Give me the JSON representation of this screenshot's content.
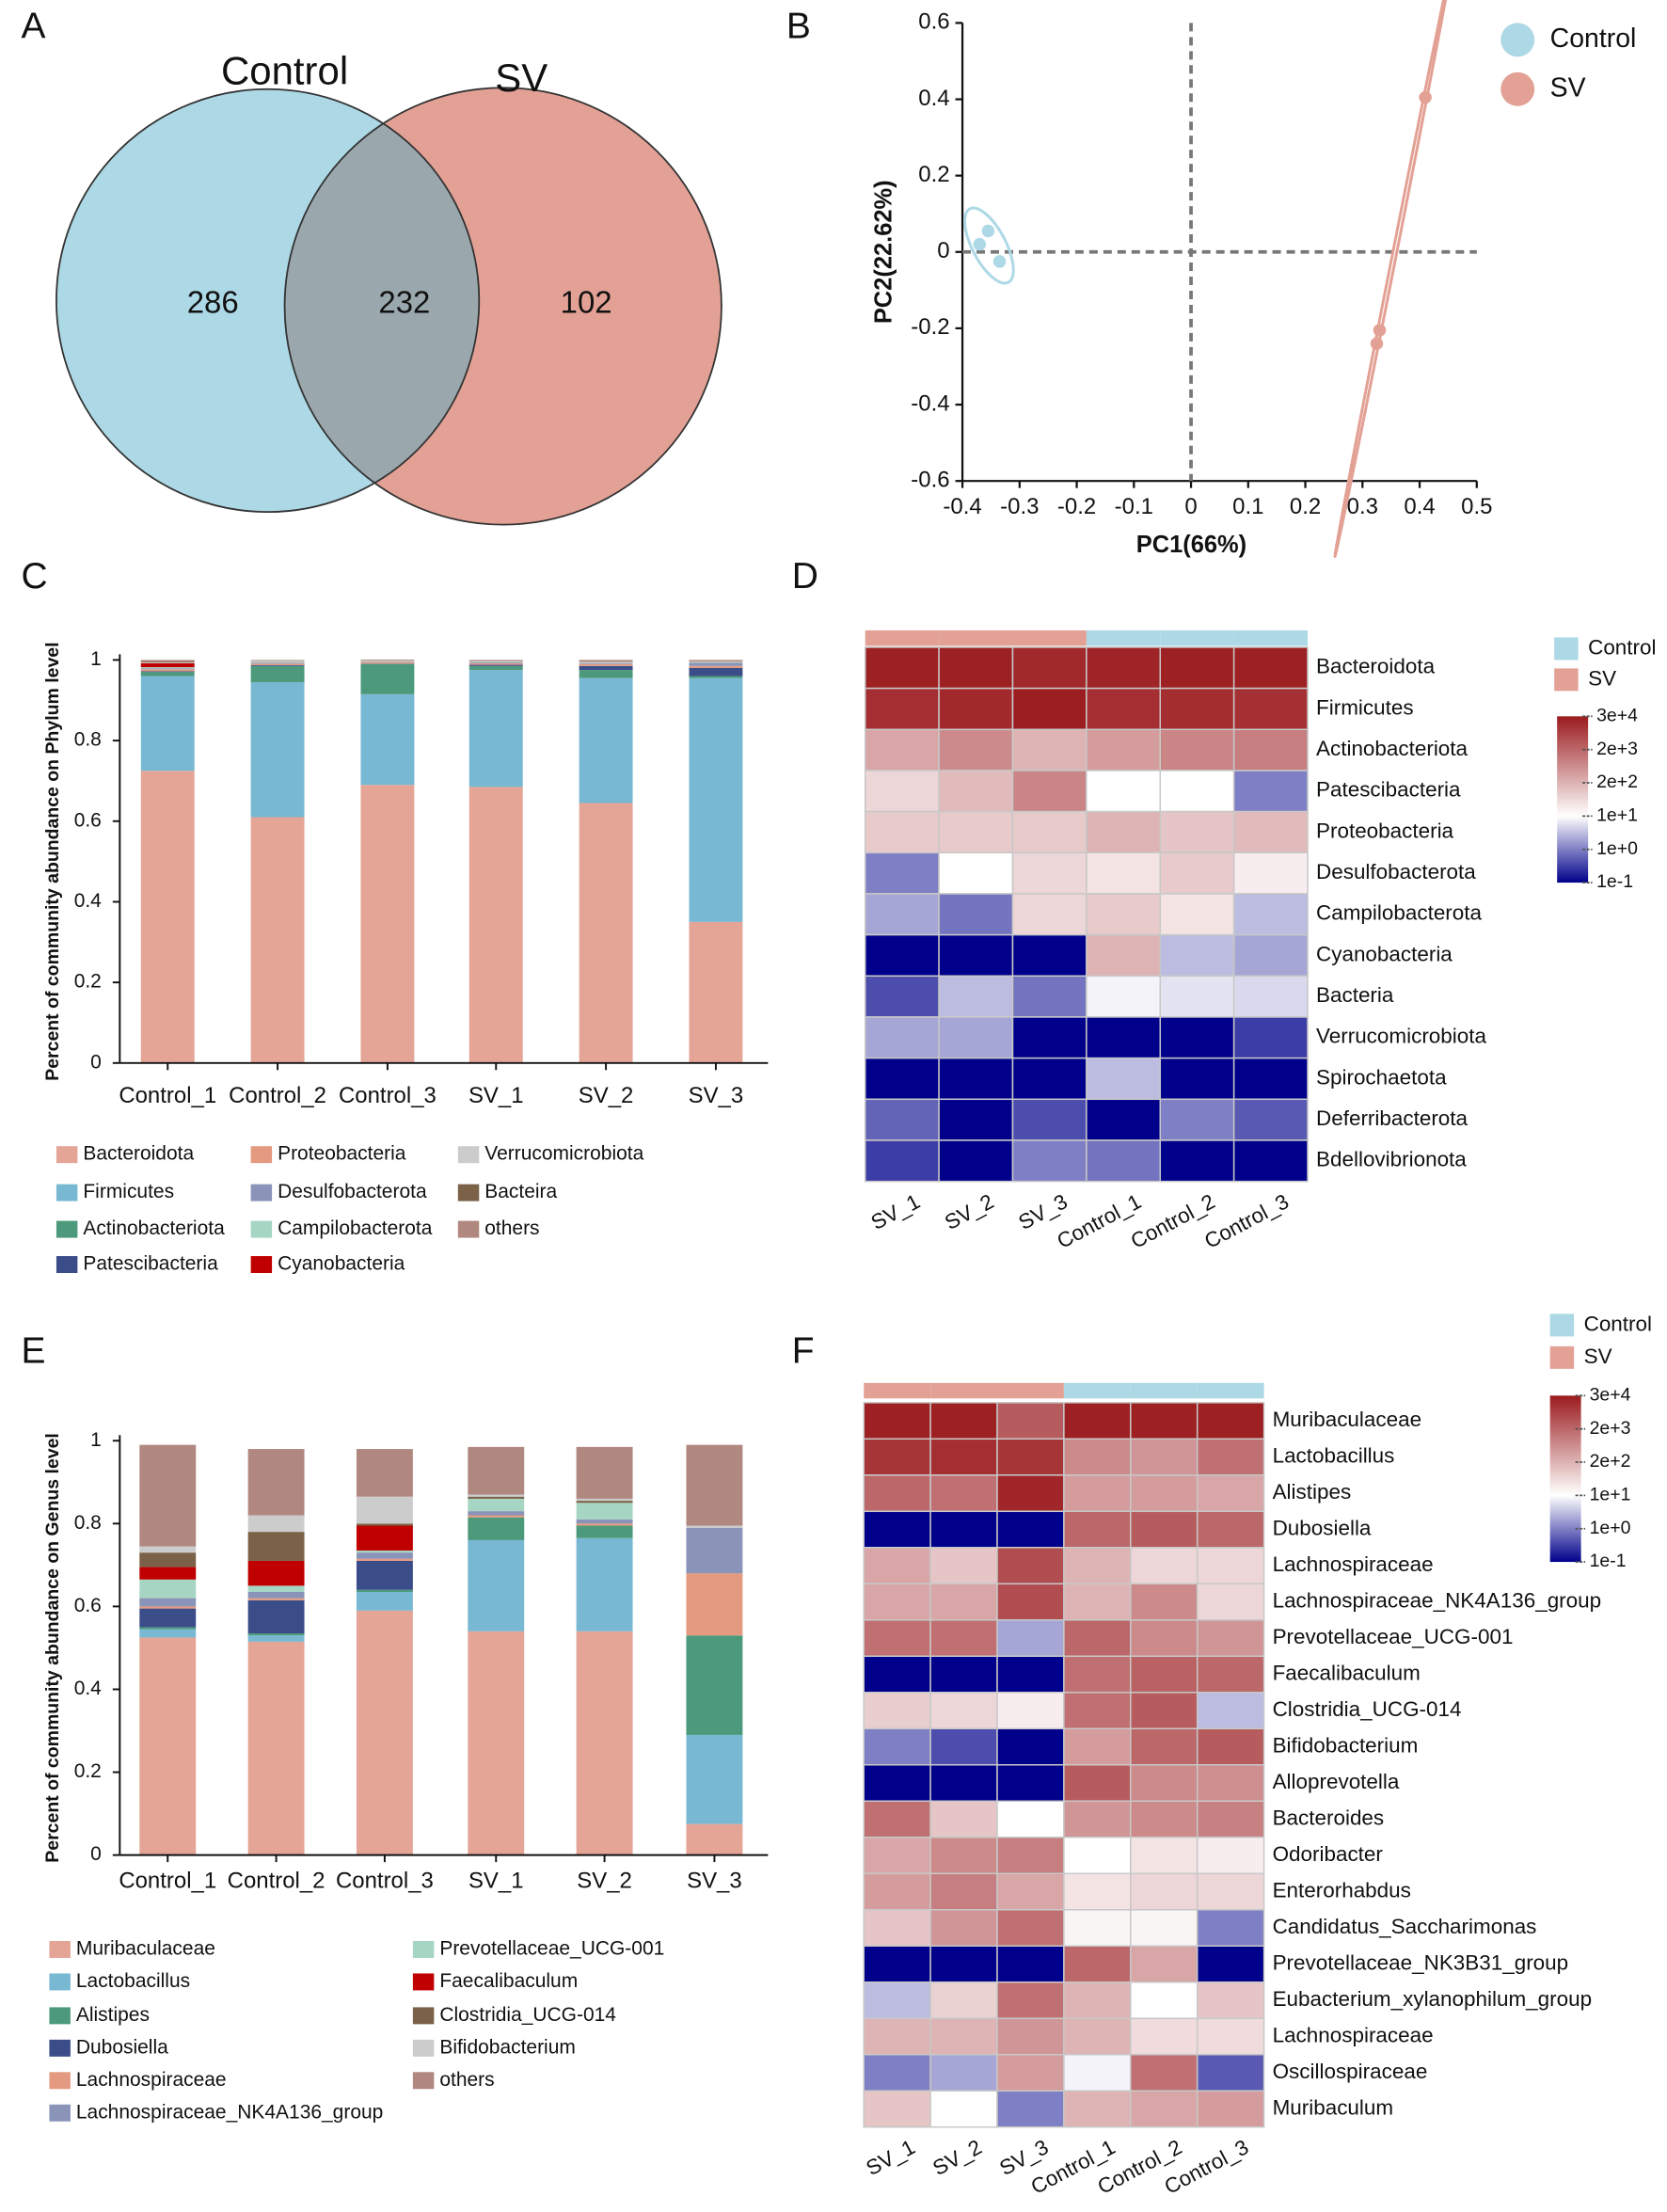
{
  "chart_data": [
    {
      "type": "venn",
      "panel": "A",
      "set_names": [
        "Control",
        "SV"
      ],
      "values": [
        286,
        232,
        102
      ],
      "colors": [
        "#add8e6",
        "#e3a195",
        "#9aa8ad"
      ]
    },
    {
      "type": "scatter",
      "panel": "B",
      "xlabel": "PC1(66%)",
      "ylabel": "PC2(22.62%)",
      "xlim": [
        -0.4,
        0.5
      ],
      "xticks": [
        -0.4,
        -0.3,
        -0.2,
        -0.1,
        0,
        0.1,
        0.2,
        0.3,
        0.4,
        0.5
      ],
      "ylim": [
        -0.6,
        0.6
      ],
      "yticks": [
        -0.6,
        -0.4,
        -0.2,
        0,
        0.2,
        0.4,
        0.6
      ],
      "zero_lines": true,
      "legend": "top-right",
      "series": [
        {
          "name": "Control",
          "color": "#add8e6",
          "x": [
            -0.37,
            -0.355,
            -0.335
          ],
          "y": [
            0.02,
            0.055,
            -0.025
          ]
        },
        {
          "name": "SV",
          "color": "#e3a195",
          "x": [
            0.41,
            0.33,
            0.325
          ],
          "y": [
            0.405,
            -0.205,
            -0.24
          ]
        }
      ]
    },
    {
      "type": "stacked_bar",
      "panel": "C",
      "ylabel": "Percent of community abundance on Phylum level",
      "categories": [
        "Control_1",
        "Control_2",
        "Control_3",
        "SV_1",
        "SV_2",
        "SV_3"
      ],
      "ylim": [
        0,
        1
      ],
      "yticks": [
        0,
        0.2,
        0.4,
        0.6,
        0.8,
        1
      ],
      "series": [
        {
          "name": "Bacteroidota",
          "color": "#e4a597",
          "values": [
            0.725,
            0.61,
            0.69,
            0.685,
            0.645,
            0.35
          ]
        },
        {
          "name": "Firmicutes",
          "color": "#78b8d3",
          "values": [
            0.235,
            0.335,
            0.225,
            0.29,
            0.31,
            0.605
          ]
        },
        {
          "name": "Actinobacteriota",
          "color": "#4c9a7b",
          "values": [
            0.01,
            0.04,
            0.075,
            0.01,
            0.02,
            0.005
          ]
        },
        {
          "name": "Patescibacteria",
          "color": "#3b4d88",
          "values": [
            0.002,
            0.002,
            0.001,
            0.003,
            0.01,
            0.02
          ]
        },
        {
          "name": "Proteobacteria",
          "color": "#e49a80",
          "values": [
            0.005,
            0.004,
            0.004,
            0.004,
            0.005,
            0.005
          ]
        },
        {
          "name": "Desulfobacterota",
          "color": "#8a93b8",
          "values": [
            0.002,
            0.002,
            0.001,
            0.002,
            0.002,
            0.008
          ]
        },
        {
          "name": "Campilobacterota",
          "color": "#a6d6c3",
          "values": [
            0.003,
            0.001,
            0.001,
            0.001,
            0.001,
            0.001
          ]
        },
        {
          "name": "Cyanobacteria",
          "color": "#c00000",
          "values": [
            0.01,
            0,
            0,
            0,
            0,
            0
          ]
        },
        {
          "name": "Verrucomicrobiota",
          "color": "#cccccc",
          "values": [
            0.002,
            0.004,
            0.002,
            0.002,
            0.002,
            0.002
          ]
        },
        {
          "name": "Bacteira",
          "color": "#7a6148",
          "values": [
            0.002,
            0.001,
            0.001,
            0.001,
            0.001,
            0.001
          ]
        },
        {
          "name": "others",
          "color": "#b08880",
          "values": [
            0.004,
            0.001,
            0.001,
            0.002,
            0.004,
            0.003
          ]
        }
      ]
    },
    {
      "type": "heatmap",
      "panel": "D",
      "columns": [
        "SV_1",
        "SV_2",
        "SV_3",
        "Control_1",
        "Control_2",
        "Control_3"
      ],
      "rows": [
        "Bacteroidota",
        "Firmicutes",
        "Actinobacteriota",
        "Patescibacteria",
        "Proteobacteria",
        "Desulfobacterota",
        "Campilobacterota",
        "Cyanobacteria",
        "Bacteria",
        "Verrucomicrobiota",
        "Spirochaetota",
        "Deferribacterota",
        "Bdellovibrionota"
      ],
      "values": [
        [
          25000,
          25000,
          18000,
          22000,
          25000,
          25000
        ],
        [
          15000,
          18000,
          28000,
          15000,
          16000,
          14000
        ],
        [
          300,
          700,
          200,
          400,
          800,
          1000
        ],
        [
          50,
          150,
          800,
          10,
          10,
          1
        ],
        [
          80,
          80,
          80,
          200,
          100,
          150
        ],
        [
          1,
          10,
          50,
          30,
          80,
          20
        ],
        [
          2,
          0.8,
          50,
          80,
          30,
          3
        ],
        [
          0.1,
          0.1,
          0.1,
          200,
          3,
          2
        ],
        [
          0.4,
          3,
          0.8,
          8,
          6,
          5
        ],
        [
          2,
          2,
          0.1,
          0.1,
          0.1,
          0.3
        ],
        [
          0.1,
          0.1,
          0.1,
          3,
          0.1,
          0.1
        ],
        [
          0.6,
          0.1,
          0.4,
          0.1,
          1,
          0.5
        ],
        [
          0.3,
          0.1,
          1,
          0.8,
          0.1,
          0.1
        ]
      ],
      "groups": [
        {
          "name": "Control",
          "color": "#add8e6"
        },
        {
          "name": "SV",
          "color": "#e3a195"
        }
      ],
      "column_group": [
        1,
        1,
        1,
        0,
        0,
        0
      ],
      "colorscale": [
        "#00008b",
        "#ffffff",
        "#9b1b1e"
      ],
      "colorbar_ticks": [
        {
          "value": 30000,
          "label": "3e+4"
        },
        {
          "value": 2000,
          "label": "2e+3"
        },
        {
          "value": 200,
          "label": "2e+2"
        },
        {
          "value": 10,
          "label": "1e+1"
        },
        {
          "value": 1,
          "label": "1e+0"
        },
        {
          "value": 0.1,
          "label": "1e-1"
        }
      ]
    },
    {
      "type": "stacked_bar",
      "panel": "E",
      "ylabel": "Percent of community abundance on Genus level",
      "categories": [
        "Control_1",
        "Control_2",
        "Control_3",
        "SV_1",
        "SV_2",
        "SV_3"
      ],
      "ylim": [
        0,
        1
      ],
      "yticks": [
        0,
        0.2,
        0.4,
        0.6,
        0.8,
        1
      ],
      "series": [
        {
          "name": "Muribaculaceae",
          "color": "#e4a597",
          "values": [
            0.525,
            0.515,
            0.59,
            0.54,
            0.54,
            0.075
          ]
        },
        {
          "name": "Lactobacillus",
          "color": "#78b8d3",
          "values": [
            0.02,
            0.015,
            0.045,
            0.22,
            0.225,
            0.215
          ]
        },
        {
          "name": "Alistipes",
          "color": "#4c9a7b",
          "values": [
            0.005,
            0.005,
            0.005,
            0.055,
            0.03,
            0.24
          ]
        },
        {
          "name": "Dubosiella",
          "color": "#3b4d88",
          "values": [
            0.045,
            0.08,
            0.07,
            0,
            0,
            0
          ]
        },
        {
          "name": "Lachnospiraceae",
          "color": "#e49a80",
          "values": [
            0.005,
            0.005,
            0.005,
            0.005,
            0.005,
            0.15
          ]
        },
        {
          "name": "Lachnospiraceae_NK4A136_group",
          "color": "#8a93b8",
          "values": [
            0.02,
            0.015,
            0.015,
            0.01,
            0.01,
            0.11
          ]
        },
        {
          "name": "Prevotellaceae_UCG-001",
          "color": "#a6d6c3",
          "values": [
            0.045,
            0.015,
            0.005,
            0.03,
            0.04,
            0
          ]
        },
        {
          "name": "Faecalibaculum",
          "color": "#c00000",
          "values": [
            0.03,
            0.06,
            0.06,
            0,
            0,
            0
          ]
        },
        {
          "name": "Clostridia_UCG-014",
          "color": "#7a6148",
          "values": [
            0.035,
            0.07,
            0.005,
            0.005,
            0.005,
            0
          ]
        },
        {
          "name": "Bifidobacterium",
          "color": "#cccccc",
          "values": [
            0.015,
            0.04,
            0.065,
            0.005,
            0.005,
            0.005
          ]
        },
        {
          "name": "others",
          "color": "#b08880",
          "values": [
            0.245,
            0.16,
            0.115,
            0.115,
            0.125,
            0.195
          ]
        }
      ]
    },
    {
      "type": "heatmap",
      "panel": "F",
      "columns": [
        "SV_1",
        "SV_2",
        "SV_3",
        "Control_1",
        "Control_2",
        "Control_3"
      ],
      "rows": [
        "Muribaculaceae",
        "Lactobacillus",
        "Alistipes",
        "Dubosiella",
        "Lachnospiraceae",
        "Lachnospiraceae_NK4A136_group",
        "Prevotellaceae_UCG-001",
        "Faecalibaculum",
        "Clostridia_UCG-014",
        "Bifidobacterium",
        "Alloprevotella",
        "Bacteroides",
        "Odoribacter",
        "Enterorhabdus",
        "Candidatus_Saccharimonas",
        "Prevotellaceae_NK3B31_group",
        "Eubacterium_xylanophilum_group",
        "Lachnospiraceae",
        "Oscillospiraceae",
        "Muribaculum"
      ],
      "values": [
        [
          25000,
          25000,
          3000,
          25000,
          25000,
          25000
        ],
        [
          12000,
          15000,
          12000,
          700,
          500,
          1500
        ],
        [
          2000,
          1500,
          20000,
          400,
          400,
          300
        ],
        [
          0.1,
          0.1,
          0.1,
          2000,
          3000,
          2000
        ],
        [
          300,
          100,
          5000,
          200,
          50,
          50
        ],
        [
          300,
          300,
          5000,
          200,
          700,
          50
        ],
        [
          1500,
          1500,
          2,
          2000,
          700,
          500
        ],
        [
          0.1,
          0.1,
          0.1,
          1500,
          2500,
          2000
        ],
        [
          70,
          50,
          20,
          1500,
          3000,
          3
        ],
        [
          1,
          0.4,
          0.1,
          400,
          2000,
          3000
        ],
        [
          0.1,
          0.1,
          0.1,
          3000,
          700,
          600
        ],
        [
          1500,
          100,
          10,
          500,
          700,
          900
        ],
        [
          300,
          700,
          1000,
          10,
          30,
          20
        ],
        [
          400,
          1000,
          300,
          30,
          50,
          50
        ],
        [
          100,
          500,
          1500,
          15,
          15,
          1
        ],
        [
          0.1,
          0.1,
          0.1,
          2000,
          300,
          0.1
        ],
        [
          3,
          60,
          1500,
          200,
          10,
          100
        ],
        [
          200,
          200,
          500,
          200,
          40,
          40
        ],
        [
          1,
          2,
          400,
          8,
          1500,
          0.5
        ],
        [
          100,
          10,
          1,
          200,
          300,
          400
        ]
      ],
      "groups": [
        {
          "name": "Control",
          "color": "#add8e6"
        },
        {
          "name": "SV",
          "color": "#e3a195"
        }
      ],
      "column_group": [
        1,
        1,
        1,
        0,
        0,
        0
      ],
      "colorscale": [
        "#00008b",
        "#ffffff",
        "#9b1b1e"
      ],
      "colorbar_ticks": [
        {
          "value": 30000,
          "label": "3e+4"
        },
        {
          "value": 2000,
          "label": "2e+3"
        },
        {
          "value": 200,
          "label": "2e+2"
        },
        {
          "value": 10,
          "label": "1e+1"
        },
        {
          "value": 1,
          "label": "1e+0"
        },
        {
          "value": 0.1,
          "label": "1e-1"
        }
      ]
    }
  ]
}
